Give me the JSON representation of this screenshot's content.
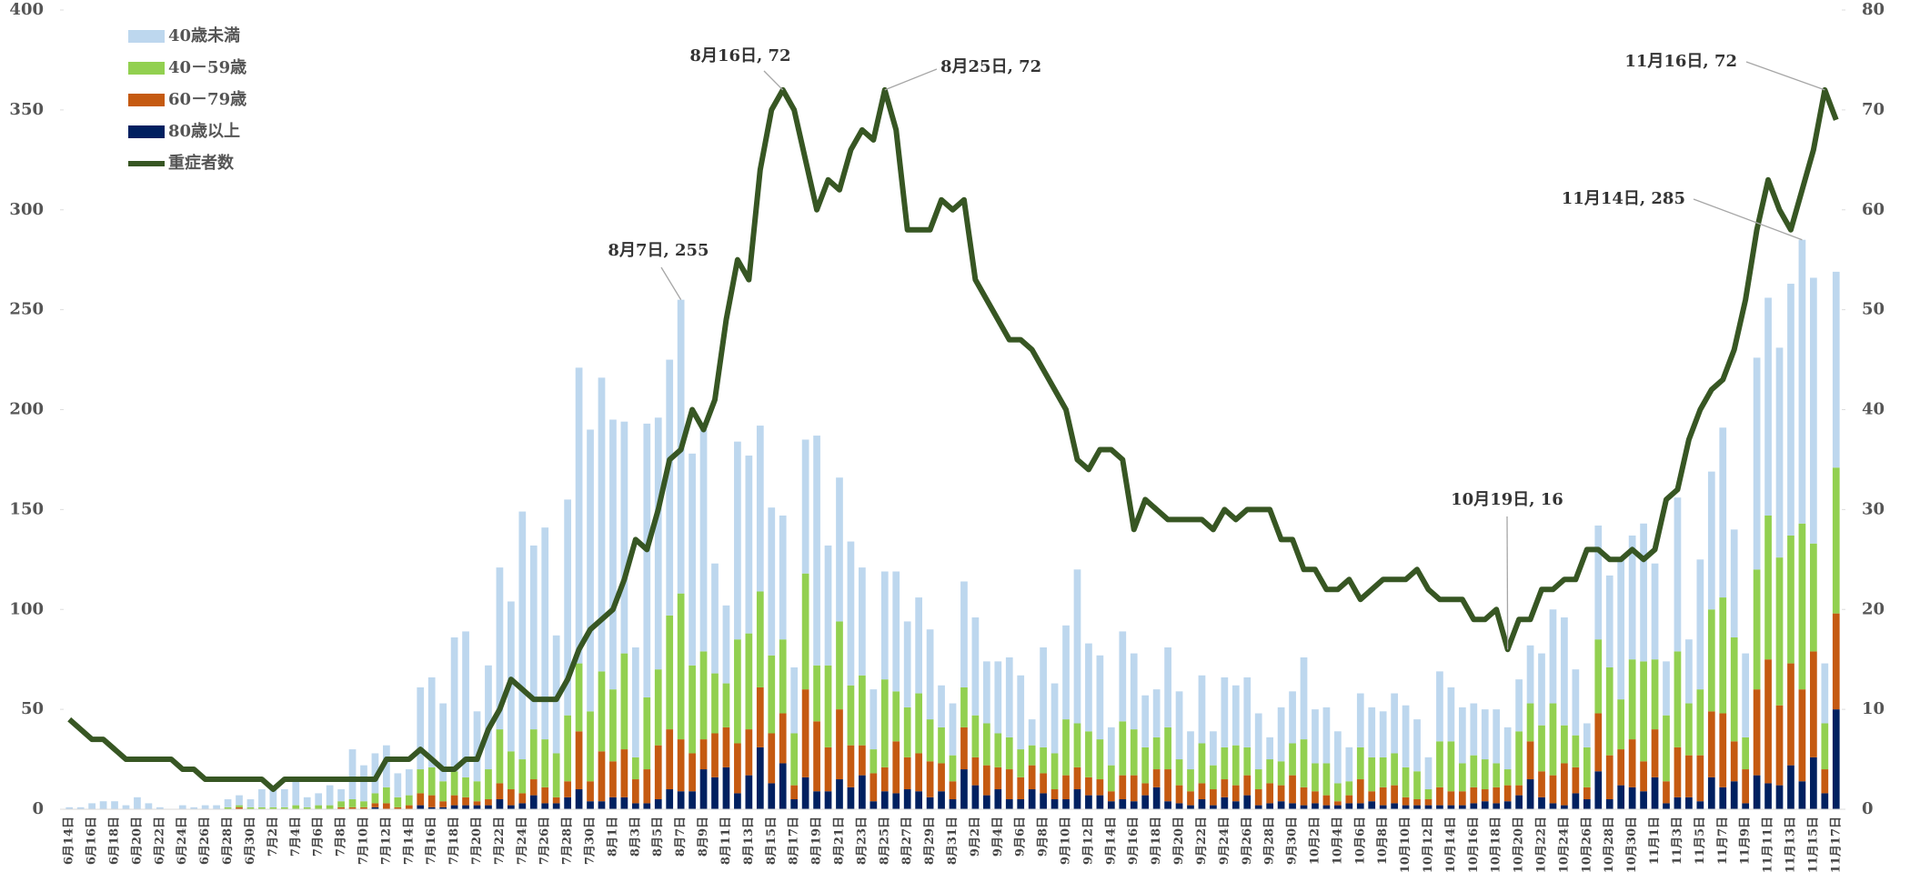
{
  "chart_data": {
    "type": "bar",
    "stacked": true,
    "categories": [
      "6月14日",
      null,
      "6月16日",
      null,
      "6月18日",
      null,
      "6月20日",
      null,
      "6月22日",
      null,
      "6月24日",
      null,
      "6月26日",
      null,
      "6月28日",
      null,
      "6月30日",
      null,
      "7月2日",
      null,
      "7月4日",
      null,
      "7月6日",
      null,
      "7月8日",
      null,
      "7月10日",
      null,
      "7月12日",
      null,
      "7月14日",
      null,
      "7月16日",
      null,
      "7月18日",
      null,
      "7月20日",
      null,
      "7月22日",
      null,
      "7月24日",
      null,
      "7月26日",
      null,
      "7月28日",
      null,
      "7月30日",
      null,
      "8月1日",
      null,
      "8月3日",
      null,
      "8月5日",
      null,
      "8月7日",
      null,
      "8月9日",
      null,
      "8月11日",
      null,
      "8月13日",
      null,
      "8月15日",
      null,
      "8月17日",
      null,
      "8月19日",
      null,
      "8月21日",
      null,
      "8月23日",
      null,
      "8月25日",
      null,
      "8月27日",
      null,
      "8月29日",
      null,
      "8月31日",
      null,
      "9月2日",
      null,
      "9月4日",
      null,
      "9月6日",
      null,
      "9月8日",
      null,
      "9月10日",
      null,
      "9月12日",
      null,
      "9月14日",
      null,
      "9月16日",
      null,
      "9月18日",
      null,
      "9月20日",
      null,
      "9月22日",
      null,
      "9月24日",
      null,
      "9月26日",
      null,
      "9月28日",
      null,
      "9月30日",
      null,
      "10月2日",
      null,
      "10月4日",
      null,
      "10月6日",
      null,
      "10月8日",
      null,
      "10月10日",
      null,
      "10月12日",
      null,
      "10月14日",
      null,
      "10月16日",
      null,
      "10月18日",
      null,
      "10月20日",
      null,
      "10月22日",
      null,
      "10月24日",
      null,
      "10月26日",
      null,
      "10月28日",
      null,
      "10月30日",
      null,
      "11月1日",
      null,
      "11月3日",
      null,
      "11月5日",
      null,
      "11月7日",
      null,
      "11月9日",
      null,
      "11月11日",
      null,
      "11月13日",
      null,
      "11月15日",
      null,
      "11月17日"
    ],
    "series": [
      {
        "name": "80歳以上",
        "color": "#002060",
        "type": "bar",
        "values": [
          0,
          0,
          0,
          0,
          0,
          0,
          0,
          0,
          0,
          0,
          0,
          0,
          0,
          0,
          0,
          0,
          0,
          0,
          0,
          0,
          0,
          0,
          0,
          0,
          0,
          0,
          0,
          1,
          0,
          0,
          0,
          2,
          1,
          1,
          2,
          2,
          2,
          2,
          5,
          2,
          3,
          7,
          3,
          3,
          6,
          10,
          4,
          4,
          6,
          6,
          3,
          3,
          5,
          10,
          9,
          9,
          20,
          16,
          21,
          8,
          17,
          31,
          13,
          23,
          5,
          16,
          9,
          9,
          15,
          11,
          17,
          4,
          9,
          8,
          10,
          9,
          6,
          9,
          5,
          20,
          12,
          7,
          10,
          5,
          5,
          10,
          8,
          5,
          5,
          10,
          7,
          7,
          4,
          5,
          4,
          7,
          11,
          4,
          3,
          2,
          5,
          2,
          6,
          4,
          7,
          2,
          3,
          4,
          3,
          2,
          3,
          2,
          2,
          3,
          3,
          4,
          2,
          3,
          2,
          2,
          2,
          2,
          2,
          2,
          3,
          4,
          3,
          4,
          7,
          15,
          6,
          3,
          2,
          8,
          5,
          19,
          5,
          12,
          11,
          9,
          16,
          3,
          6,
          6,
          4,
          16,
          11,
          14,
          3,
          17,
          13,
          12,
          22,
          14,
          26,
          8,
          50
        ]
      },
      {
        "name": "60－79歳",
        "color": "#c55a11",
        "type": "bar",
        "values": [
          0,
          0,
          0,
          0,
          0,
          0,
          0,
          0,
          0,
          0,
          0,
          0,
          0,
          0,
          0,
          1,
          0,
          0,
          0,
          0,
          0,
          0,
          0,
          0,
          1,
          1,
          1,
          2,
          3,
          1,
          2,
          6,
          6,
          3,
          5,
          4,
          2,
          3,
          8,
          8,
          5,
          8,
          8,
          3,
          8,
          29,
          10,
          25,
          18,
          24,
          12,
          17,
          27,
          30,
          26,
          19,
          15,
          22,
          20,
          25,
          23,
          30,
          25,
          25,
          7,
          44,
          35,
          22,
          35,
          21,
          15,
          14,
          12,
          26,
          16,
          19,
          18,
          14,
          9,
          21,
          14,
          15,
          11,
          15,
          11,
          12,
          10,
          5,
          12,
          11,
          9,
          8,
          5,
          12,
          13,
          6,
          9,
          16,
          9,
          7,
          8,
          8,
          9,
          8,
          10,
          8,
          10,
          8,
          14,
          9,
          6,
          5,
          2,
          4,
          12,
          5,
          9,
          9,
          4,
          3,
          3,
          9,
          7,
          7,
          8,
          6,
          8,
          8,
          5,
          19,
          13,
          14,
          21,
          13,
          6,
          29,
          22,
          18,
          24,
          15,
          24,
          11,
          25,
          21,
          23,
          33,
          37,
          20,
          17,
          43,
          62,
          40,
          51,
          46,
          53,
          12,
          48
        ]
      },
      {
        "name": "40－59歳",
        "color": "#92d050",
        "type": "bar",
        "values": [
          0,
          0,
          0,
          0,
          0,
          0,
          0,
          0,
          0,
          0,
          0,
          0,
          0,
          0,
          1,
          1,
          1,
          1,
          1,
          1,
          2,
          1,
          2,
          2,
          3,
          4,
          3,
          5,
          8,
          5,
          5,
          12,
          14,
          10,
          12,
          10,
          10,
          15,
          27,
          19,
          17,
          25,
          24,
          22,
          33,
          34,
          35,
          40,
          36,
          48,
          11,
          36,
          38,
          57,
          73,
          44,
          44,
          30,
          22,
          52,
          48,
          48,
          39,
          37,
          26,
          58,
          28,
          41,
          44,
          30,
          35,
          12,
          44,
          25,
          25,
          30,
          21,
          18,
          13,
          20,
          21,
          21,
          17,
          16,
          14,
          10,
          13,
          18,
          28,
          22,
          23,
          20,
          13,
          27,
          23,
          18,
          16,
          21,
          13,
          11,
          20,
          12,
          16,
          20,
          14,
          10,
          12,
          12,
          16,
          24,
          14,
          16,
          9,
          7,
          16,
          17,
          15,
          16,
          15,
          14,
          5,
          23,
          25,
          14,
          16,
          15,
          12,
          8,
          27,
          19,
          23,
          36,
          19,
          16,
          20,
          37,
          44,
          25,
          40,
          50,
          35,
          33,
          48,
          26,
          33,
          51,
          58,
          52,
          16,
          60,
          72,
          74,
          64,
          83,
          54,
          23,
          73
        ]
      },
      {
        "name": "40歳未満",
        "color": "#bdd7ee",
        "type": "bar",
        "values": [
          1,
          1,
          3,
          4,
          4,
          2,
          6,
          3,
          1,
          0,
          2,
          1,
          2,
          2,
          4,
          5,
          4,
          9,
          11,
          9,
          14,
          5,
          6,
          10,
          6,
          25,
          18,
          20,
          21,
          12,
          13,
          41,
          45,
          39,
          67,
          73,
          35,
          52,
          81,
          75,
          124,
          92,
          106,
          59,
          108,
          148,
          141,
          147,
          135,
          116,
          55,
          137,
          126,
          128,
          147,
          106,
          111,
          55,
          39,
          99,
          89,
          83,
          74,
          62,
          33,
          67,
          115,
          60,
          72,
          72,
          54,
          30,
          54,
          60,
          43,
          48,
          45,
          21,
          26,
          53,
          49,
          31,
          36,
          40,
          37,
          13,
          50,
          35,
          47,
          77,
          44,
          42,
          19,
          45,
          38,
          26,
          24,
          40,
          34,
          19,
          34,
          17,
          35,
          30,
          35,
          28,
          11,
          27,
          26,
          41,
          27,
          28,
          26,
          17,
          27,
          25,
          23,
          30,
          31,
          26,
          16,
          35,
          27,
          28,
          26,
          25,
          27,
          21,
          26,
          29,
          36,
          47,
          54,
          33,
          12,
          57,
          46,
          71,
          62,
          69,
          48,
          27,
          77,
          32,
          65,
          69,
          85,
          54,
          42,
          106,
          109,
          105,
          126,
          142,
          133,
          30,
          98
        ]
      },
      {
        "name": "重症者数",
        "color": "#375623",
        "type": "line",
        "axis": "y2",
        "values": [
          9,
          8,
          7,
          7,
          6,
          5,
          5,
          5,
          5,
          5,
          4,
          4,
          3,
          3,
          3,
          3,
          3,
          3,
          2,
          3,
          3,
          3,
          3,
          3,
          3,
          3,
          3,
          3,
          5,
          5,
          5,
          6,
          5,
          4,
          4,
          5,
          5,
          8,
          10,
          13,
          12,
          11,
          11,
          11,
          13,
          16,
          18,
          19,
          20,
          23,
          27,
          26,
          30,
          35,
          36,
          40,
          38,
          41,
          49,
          55,
          53,
          64,
          70,
          72,
          70,
          65,
          60,
          63,
          62,
          66,
          68,
          67,
          72,
          68,
          58,
          58,
          58,
          61,
          60,
          61,
          53,
          51,
          49,
          47,
          47,
          46,
          44,
          42,
          40,
          35,
          34,
          36,
          36,
          35,
          28,
          31,
          30,
          29,
          29,
          29,
          29,
          28,
          30,
          29,
          30,
          30,
          30,
          27,
          27,
          24,
          24,
          22,
          22,
          23,
          21,
          22,
          23,
          23,
          23,
          24,
          22,
          21,
          21,
          21,
          19,
          19,
          20,
          16,
          19,
          19,
          22,
          22,
          23,
          23,
          26,
          26,
          25,
          25,
          26,
          25,
          26,
          31,
          32,
          37,
          40,
          42,
          43,
          46,
          51,
          58,
          63,
          60,
          58,
          62,
          66,
          72,
          69
        ]
      }
    ],
    "ylim": [
      0,
      400
    ],
    "yticks": [
      0,
      50,
      100,
      150,
      200,
      250,
      300,
      350,
      400
    ],
    "y2lim": [
      0,
      80
    ],
    "y2ticks": [
      0,
      10,
      20,
      30,
      40,
      50,
      60,
      70,
      80
    ],
    "grid": false,
    "legend": "top-left",
    "annotations": [
      {
        "text": "8月16日, 72"
      },
      {
        "text": "8月25日, 72"
      },
      {
        "text": "8月7日, 255"
      },
      {
        "text": "10月19日, 16"
      },
      {
        "text": "11月16日, 72"
      },
      {
        "text": "11月14日, 285"
      }
    ]
  }
}
